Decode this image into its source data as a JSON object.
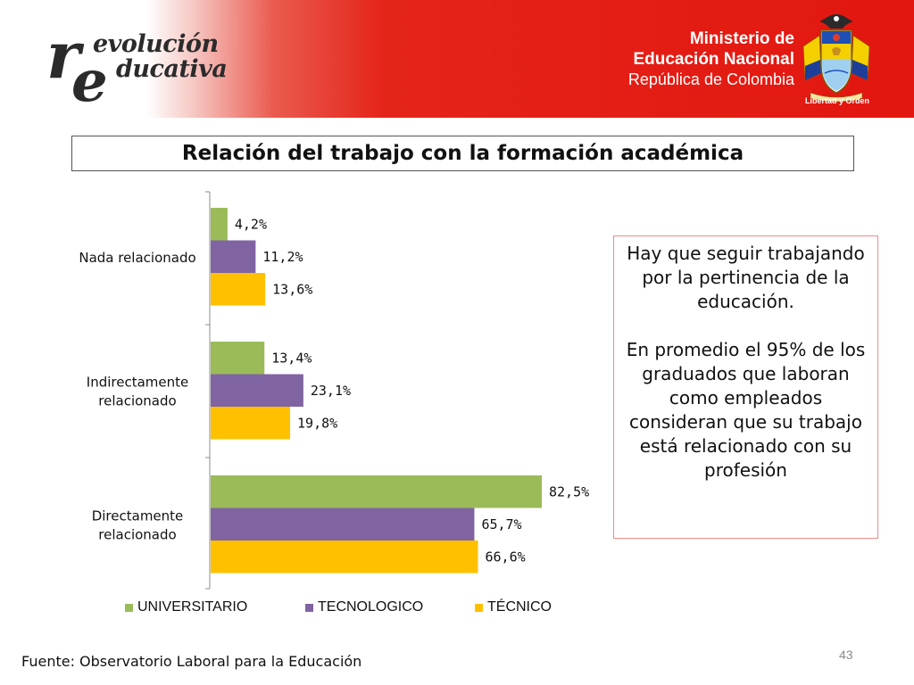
{
  "header": {
    "logo_line1": "evolución",
    "logo_line2": "ducativa",
    "logo_letter_r": "r",
    "logo_letter_e": "e",
    "ministry_line1": "Ministerio de",
    "ministry_line2": "Educación Nacional",
    "ministry_line3": "República de Colombia",
    "motto": "Libertad y Orden",
    "seal_icon": "coat-of-arms-icon"
  },
  "title": "Relación del trabajo con la formación académica",
  "chart_data": {
    "type": "bar",
    "orientation": "horizontal",
    "categories": [
      "Nada relacionado",
      "Indirectamente relacionado",
      "Directamente relacionado"
    ],
    "category_lines": [
      [
        "Nada relacionado"
      ],
      [
        "Indirectamente",
        "relacionado"
      ],
      [
        "Directamente",
        "relacionado"
      ]
    ],
    "series": [
      {
        "name": "UNIVERSITARIO",
        "color": "#9bbb59",
        "values": [
          4.2,
          13.4,
          82.5
        ],
        "labels": [
          "4,2%",
          "13,4%",
          "82,5%"
        ]
      },
      {
        "name": "TECNOLOGICO",
        "color": "#8064a2",
        "values": [
          11.2,
          23.1,
          65.7
        ],
        "labels": [
          "11,2%",
          "23,1%",
          "65,7%"
        ]
      },
      {
        "name": "TÉCNICO",
        "color": "#ffc000",
        "values": [
          13.6,
          19.8,
          66.6
        ],
        "labels": [
          "13,6%",
          "19,8%",
          "66,6%"
        ]
      }
    ],
    "xlim": [
      0,
      100
    ],
    "grid": false,
    "legend_position": "bottom"
  },
  "callout": {
    "paragraph1": "Hay que seguir trabajando por la pertinencia de la educación.",
    "paragraph2": "En promedio el 95% de los graduados que laboran como empleados consideran que su trabajo está relacionado con su profesión"
  },
  "source": "Fuente: Observatorio Laboral para la Educación",
  "page_number": "43"
}
